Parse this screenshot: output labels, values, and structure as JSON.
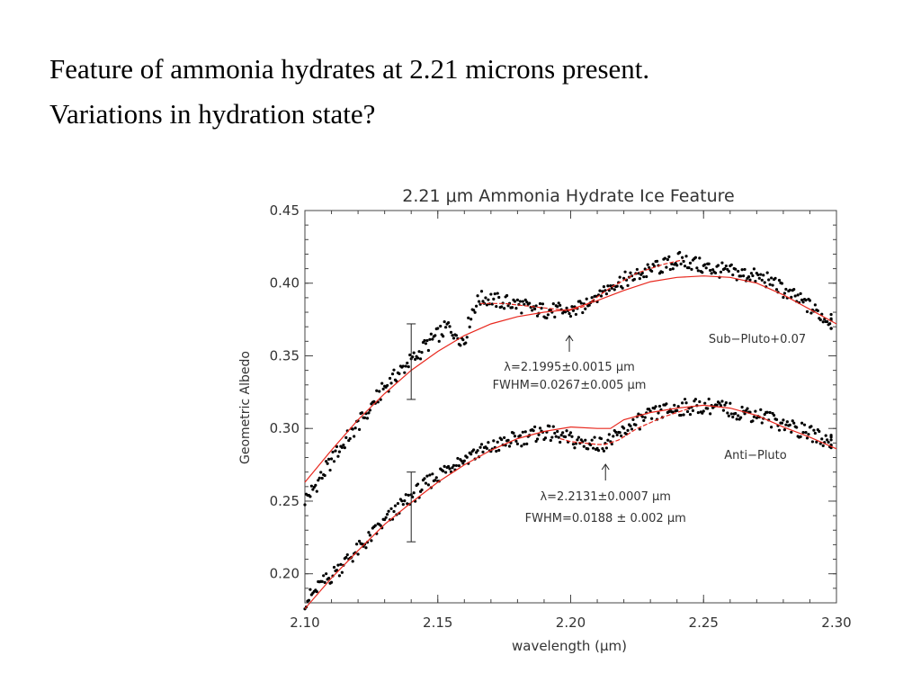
{
  "slide": {
    "line1": "Feature of ammonia hydrates at 2.21 microns present.",
    "line2": "Variations in hydration state?"
  },
  "colors": {
    "fit": "#e8281e",
    "points": "#000000",
    "axes": "#333333"
  },
  "chart_data": {
    "type": "scatter",
    "title": "2.21 μm Ammonia Hydrate Ice Feature",
    "xlabel": "wavelength (μm)",
    "ylabel": "Geometric Albedo",
    "xlim": [
      2.1,
      2.3
    ],
    "ylim": [
      0.18,
      0.45
    ],
    "xticks": [
      "2.10",
      "2.15",
      "2.20",
      "2.25",
      "2.30"
    ],
    "yticks": [
      "0.20",
      "0.25",
      "0.30",
      "0.35",
      "0.40",
      "0.45"
    ],
    "series": [
      {
        "name": "Sub−Pluto+0.07",
        "points_x": [
          2.1,
          2.103,
          2.106,
          2.109,
          2.112,
          2.115,
          2.118,
          2.121,
          2.124,
          2.127,
          2.13,
          2.133,
          2.136,
          2.139,
          2.142,
          2.145,
          2.148,
          2.151,
          2.154,
          2.157,
          2.16,
          2.163,
          2.166,
          2.169,
          2.172,
          2.175,
          2.178,
          2.181,
          2.184,
          2.187,
          2.19,
          2.193,
          2.196,
          2.199,
          2.202,
          2.205,
          2.208,
          2.211,
          2.214,
          2.217,
          2.22,
          2.223,
          2.226,
          2.229,
          2.232,
          2.235,
          2.238,
          2.241,
          2.244,
          2.247,
          2.25,
          2.253,
          2.256,
          2.259,
          2.262,
          2.265,
          2.268,
          2.271,
          2.274,
          2.277,
          2.28,
          2.283,
          2.286,
          2.289,
          2.292,
          2.295,
          2.298
        ],
        "points_y": [
          0.251,
          0.258,
          0.266,
          0.275,
          0.283,
          0.291,
          0.298,
          0.305,
          0.313,
          0.321,
          0.328,
          0.334,
          0.34,
          0.345,
          0.35,
          0.356,
          0.361,
          0.366,
          0.37,
          0.365,
          0.36,
          0.382,
          0.389,
          0.39,
          0.388,
          0.387,
          0.386,
          0.385,
          0.383,
          0.382,
          0.381,
          0.381,
          0.381,
          0.38,
          0.381,
          0.385,
          0.39,
          0.394,
          0.397,
          0.4,
          0.402,
          0.404,
          0.406,
          0.408,
          0.41,
          0.412,
          0.414,
          0.416,
          0.415,
          0.413,
          0.411,
          0.41,
          0.409,
          0.408,
          0.407,
          0.406,
          0.405,
          0.404,
          0.402,
          0.399,
          0.395,
          0.392,
          0.388,
          0.385,
          0.381,
          0.377,
          0.373
        ],
        "fit_x": [
          2.1,
          2.11,
          2.12,
          2.13,
          2.14,
          2.15,
          2.16,
          2.17,
          2.18,
          2.19,
          2.2,
          2.21,
          2.22,
          2.23,
          2.24,
          2.25,
          2.26,
          2.27,
          2.28,
          2.29,
          2.3
        ],
        "fit_y": [
          0.263,
          0.285,
          0.306,
          0.324,
          0.34,
          0.353,
          0.364,
          0.372,
          0.377,
          0.38,
          0.382,
          0.388,
          0.395,
          0.401,
          0.404,
          0.405,
          0.404,
          0.4,
          0.392,
          0.382,
          0.372
        ],
        "fit2_x": [
          2.166,
          2.175,
          2.185,
          2.195,
          2.199,
          2.205,
          2.215,
          2.225,
          2.235,
          2.242
        ],
        "fit2_y": [
          0.386,
          0.386,
          0.384,
          0.382,
          0.381,
          0.384,
          0.397,
          0.407,
          0.413,
          0.416
        ],
        "errorbar": {
          "x": 2.14,
          "y": 0.346,
          "low": 0.32,
          "high": 0.372
        },
        "label": "Sub−Pluto+0.07"
      },
      {
        "name": "Anti−Pluto",
        "points_x": [
          2.1,
          2.103,
          2.106,
          2.109,
          2.112,
          2.115,
          2.118,
          2.121,
          2.124,
          2.127,
          2.13,
          2.133,
          2.136,
          2.139,
          2.142,
          2.145,
          2.148,
          2.151,
          2.154,
          2.157,
          2.16,
          2.163,
          2.166,
          2.169,
          2.172,
          2.175,
          2.178,
          2.181,
          2.184,
          2.187,
          2.19,
          2.193,
          2.196,
          2.199,
          2.202,
          2.205,
          2.208,
          2.211,
          2.214,
          2.217,
          2.22,
          2.223,
          2.226,
          2.229,
          2.232,
          2.235,
          2.238,
          2.241,
          2.244,
          2.247,
          2.25,
          2.253,
          2.256,
          2.259,
          2.262,
          2.265,
          2.268,
          2.271,
          2.274,
          2.277,
          2.28,
          2.283,
          2.286,
          2.289,
          2.292,
          2.295,
          2.298
        ],
        "points_y": [
          0.181,
          0.186,
          0.192,
          0.197,
          0.202,
          0.208,
          0.213,
          0.218,
          0.224,
          0.23,
          0.236,
          0.241,
          0.246,
          0.251,
          0.256,
          0.261,
          0.265,
          0.269,
          0.273,
          0.277,
          0.28,
          0.282,
          0.284,
          0.286,
          0.288,
          0.29,
          0.292,
          0.293,
          0.295,
          0.296,
          0.297,
          0.296,
          0.295,
          0.293,
          0.291,
          0.29,
          0.289,
          0.289,
          0.291,
          0.294,
          0.298,
          0.302,
          0.305,
          0.308,
          0.31,
          0.312,
          0.313,
          0.314,
          0.315,
          0.315,
          0.316,
          0.315,
          0.314,
          0.313,
          0.312,
          0.311,
          0.31,
          0.309,
          0.307,
          0.305,
          0.303,
          0.301,
          0.299,
          0.297,
          0.295,
          0.293,
          0.291
        ],
        "fit_x": [
          2.1,
          2.11,
          2.12,
          2.13,
          2.14,
          2.15,
          2.16,
          2.17,
          2.18,
          2.19,
          2.2,
          2.21,
          2.215,
          2.22,
          2.23,
          2.24,
          2.25,
          2.26,
          2.27,
          2.28,
          2.29,
          2.3
        ],
        "fit_y": [
          0.176,
          0.197,
          0.216,
          0.234,
          0.249,
          0.263,
          0.275,
          0.285,
          0.293,
          0.298,
          0.301,
          0.3,
          0.3,
          0.306,
          0.311,
          0.314,
          0.316,
          0.314,
          0.309,
          0.301,
          0.294,
          0.286
        ],
        "fit2_x": [
          2.196,
          2.2,
          2.205,
          2.21,
          2.213,
          2.218,
          2.225,
          2.235,
          2.245
        ],
        "fit2_y": [
          0.293,
          0.291,
          0.29,
          0.289,
          0.289,
          0.292,
          0.3,
          0.308,
          0.314
        ],
        "errorbar": {
          "x": 2.14,
          "y": 0.246,
          "low": 0.222,
          "high": 0.27
        },
        "label": "Anti−Pluto"
      }
    ],
    "annotations": [
      {
        "text1": "λ=2.1995±0.0015 μm",
        "text2": "FWHM=0.0267±0.005 μm",
        "arrow_x": 2.1995
      },
      {
        "text1": "λ=2.2131±0.0007 μm",
        "text2": "FWHM=0.0188 ± 0.002 μm",
        "arrow_x": 2.2131
      }
    ]
  }
}
